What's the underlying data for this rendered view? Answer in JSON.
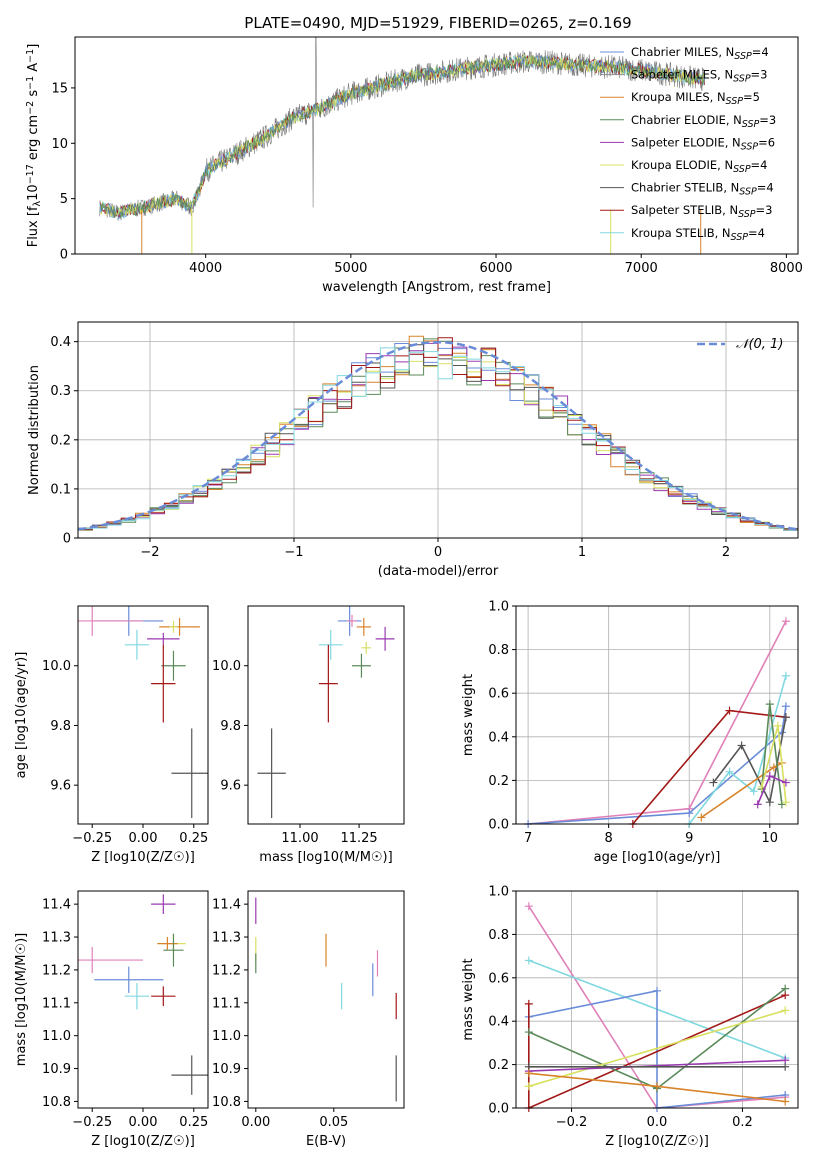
{
  "title": "PLATE=0490, MJD=51929, FIBERID=0265, z=0.169",
  "colors": {
    "Chabrier MILES": "#6a8cd8",
    "Salpeter MILES": "#8c8c8c",
    "Kroupa MILES": "#d8832a",
    "Chabrier ELODIE": "#5a8a5a",
    "Salpeter ELODIE": "#9a3ab0",
    "Kroupa ELODIE": "#d8e060",
    "Chabrier STELIB": "#555555",
    "Salpeter STELIB": "#a31818",
    "Kroupa STELIB": "#80d8e0",
    "pink": "#e080b8"
  },
  "chart_data": [
    {
      "id": "spectrum",
      "type": "line",
      "xlabel": "wavelength [Angstrom, rest frame]",
      "ylabel": "Flux [f_λ 10^-17 erg cm^-2 s^-1 A^-1]",
      "xlim": [
        3100,
        8080
      ],
      "ylim": [
        0,
        19.6
      ],
      "xticks": [
        4000,
        5000,
        6000,
        7000,
        8000
      ],
      "yticks": [
        0,
        5,
        10,
        15
      ],
      "grid": false,
      "legend_position": "right",
      "legend": [
        {
          "label": "Chabrier MILES, N",
          "sub": "SSP",
          "n": "=4"
        },
        {
          "label": "Salpeter MILES, N",
          "sub": "SSP",
          "n": "=3"
        },
        {
          "label": "Kroupa MILES, N",
          "sub": "SSP",
          "n": "=5"
        },
        {
          "label": "Chabrier ELODIE, N",
          "sub": "SSP",
          "n": "=3"
        },
        {
          "label": "Salpeter ELODIE, N",
          "sub": "SSP",
          "n": "=6"
        },
        {
          "label": "Kroupa ELODIE, N",
          "sub": "SSP",
          "n": "=4"
        },
        {
          "label": "Chabrier STELIB, N",
          "sub": "SSP",
          "n": "=4"
        },
        {
          "label": "Salpeter STELIB, N",
          "sub": "SSP",
          "n": "=3"
        },
        {
          "label": "Kroupa STELIB, N",
          "sub": "SSP",
          "n": "=4"
        }
      ],
      "continuum_x": [
        3270,
        3400,
        3600,
        3800,
        3900,
        3950,
        4000,
        4200,
        4400,
        4600,
        4800,
        5000,
        5200,
        5400,
        5600,
        5800,
        6000,
        6200,
        6400,
        6600,
        6800,
        7000,
        7200,
        7400
      ],
      "continuum_y": [
        4.2,
        3.7,
        4.3,
        5.0,
        4.2,
        5.5,
        7.5,
        9.0,
        10.5,
        12.3,
        13.2,
        14.5,
        15.2,
        16.0,
        16.4,
        16.8,
        17.1,
        17.4,
        17.3,
        17.0,
        16.9,
        16.6,
        16.2,
        15.8
      ]
    },
    {
      "id": "residuals",
      "type": "histogram",
      "xlabel": "(data-model)/error",
      "ylabel": "Normed distribution",
      "xlim": [
        -2.5,
        2.5
      ],
      "ylim": [
        0,
        0.44
      ],
      "xticks": [
        -2,
        -1,
        0,
        1,
        2
      ],
      "yticks": [
        0.0,
        0.1,
        0.2,
        0.3,
        0.4
      ],
      "grid": true,
      "legend": [
        {
          "label": "𝒩(0, 1)"
        }
      ]
    },
    {
      "id": "age_vs_Z",
      "type": "scatter",
      "xlabel": "Z [log10(Z/Z☉)]",
      "ylabel": "age  [log10(age/yr)]",
      "xlim": [
        -0.32,
        0.32
      ],
      "ylim": [
        9.47,
        10.2
      ],
      "xticks": [
        -0.25,
        0.0,
        0.25
      ],
      "xticklabels": [
        "−0.25",
        "0.00",
        "0.25"
      ],
      "yticks": [
        9.6,
        9.8,
        10.0
      ],
      "yticklabels": [
        "9.6",
        "9.8",
        "10.0"
      ],
      "points": [
        {
          "x": -0.07,
          "y": 10.15,
          "ex": 0.17,
          "ey": 0.05,
          "c": "Chabrier MILES"
        },
        {
          "x": -0.25,
          "y": 10.15,
          "ex": 0.25,
          "ey": 0.05,
          "c": "pink"
        },
        {
          "x": 0.18,
          "y": 10.13,
          "ex": 0.1,
          "ey": 0.03,
          "c": "Kroupa MILES"
        },
        {
          "x": 0.1,
          "y": 10.09,
          "ex": 0.08,
          "ey": 0.02,
          "c": "Salpeter ELODIE"
        },
        {
          "x": 0.15,
          "y": 10.13,
          "ex": 0.02,
          "ey": 0.02,
          "c": "Kroupa ELODIE"
        },
        {
          "x": -0.03,
          "y": 10.07,
          "ex": 0.06,
          "ey": 0.05,
          "c": "Kroupa STELIB"
        },
        {
          "x": 0.15,
          "y": 10.0,
          "ex": 0.06,
          "ey": 0.05,
          "c": "Chabrier ELODIE"
        },
        {
          "x": 0.1,
          "y": 9.94,
          "ex": 0.06,
          "ey": 0.13,
          "c": "Salpeter STELIB"
        },
        {
          "x": 0.24,
          "y": 9.64,
          "ex": 0.1,
          "ey": 0.15,
          "c": "Chabrier STELIB"
        }
      ]
    },
    {
      "id": "age_vs_mass",
      "type": "scatter",
      "xlabel": "mass [log10(M/M☉)]",
      "xlim": [
        10.78,
        11.44
      ],
      "ylim": [
        9.47,
        10.2
      ],
      "xticks": [
        11.0,
        11.25
      ],
      "xticklabels": [
        "11.00",
        "11.25"
      ],
      "yticks": [
        9.6,
        9.8,
        10.0
      ],
      "yticklabels": [
        "9.6",
        "9.8",
        "10.0"
      ],
      "points": [
        {
          "x": 11.21,
          "y": 10.15,
          "ex": 0.05,
          "ey": 0.05,
          "c": "Chabrier MILES"
        },
        {
          "x": 11.27,
          "y": 10.13,
          "ex": 0.03,
          "ey": 0.03,
          "c": "Kroupa MILES"
        },
        {
          "x": 11.22,
          "y": 10.15,
          "ex": 0.02,
          "ey": 0.02,
          "c": "pink"
        },
        {
          "x": 11.36,
          "y": 10.09,
          "ex": 0.04,
          "ey": 0.04,
          "c": "Salpeter ELODIE"
        },
        {
          "x": 11.28,
          "y": 10.06,
          "ex": 0.02,
          "ey": 0.02,
          "c": "Kroupa ELODIE"
        },
        {
          "x": 11.13,
          "y": 10.07,
          "ex": 0.05,
          "ey": 0.05,
          "c": "Kroupa STELIB"
        },
        {
          "x": 11.26,
          "y": 10.0,
          "ex": 0.04,
          "ey": 0.04,
          "c": "Chabrier ELODIE"
        },
        {
          "x": 11.12,
          "y": 9.94,
          "ex": 0.04,
          "ey": 0.13,
          "c": "Salpeter STELIB"
        },
        {
          "x": 10.88,
          "y": 9.64,
          "ex": 0.06,
          "ey": 0.15,
          "c": "Chabrier STELIB"
        }
      ]
    },
    {
      "id": "weight_vs_age",
      "type": "line",
      "xlabel": "age  [log10(age/yr)]",
      "ylabel": "mass weight",
      "xlim": [
        6.85,
        10.35
      ],
      "ylim": [
        0,
        1.0
      ],
      "xticks": [
        7,
        8,
        9,
        10
      ],
      "xticklabels": [
        "7",
        "8",
        "9",
        "10"
      ],
      "yticks": [
        0.0,
        0.2,
        0.4,
        0.6,
        0.8,
        1.0
      ],
      "yticklabels": [
        "0.0",
        "0.2",
        "0.4",
        "0.6",
        "0.8",
        "1.0"
      ],
      "grid": true,
      "series": [
        {
          "c": "pink",
          "x": [
            7.0,
            9.0,
            10.2
          ],
          "y": [
            0.0,
            0.07,
            0.93
          ]
        },
        {
          "c": "Chabrier MILES",
          "x": [
            7.0,
            9.0,
            10.15,
            10.2
          ],
          "y": [
            0.0,
            0.05,
            0.42,
            0.54
          ]
        },
        {
          "c": "Salpeter STELIB",
          "x": [
            8.3,
            9.5,
            10.2
          ],
          "y": [
            0.0,
            0.52,
            0.49
          ]
        },
        {
          "c": "Kroupa STELIB",
          "x": [
            9.0,
            9.5,
            9.8,
            10.2
          ],
          "y": [
            0.0,
            0.24,
            0.15,
            0.68
          ]
        },
        {
          "c": "Chabrier STELIB",
          "x": [
            9.3,
            9.65,
            10.0,
            10.2
          ],
          "y": [
            0.19,
            0.36,
            0.1,
            0.49
          ]
        },
        {
          "c": "Kroupa MILES",
          "x": [
            9.15,
            10.05,
            10.15
          ],
          "y": [
            0.03,
            0.26,
            0.28
          ]
        },
        {
          "c": "Chabrier ELODIE",
          "x": [
            9.9,
            10.0,
            10.15
          ],
          "y": [
            0.16,
            0.55,
            0.09
          ]
        },
        {
          "c": "Kroupa ELODIE",
          "x": [
            9.9,
            10.1,
            10.2
          ],
          "y": [
            0.17,
            0.45,
            0.1
          ]
        },
        {
          "c": "Salpeter ELODIE",
          "x": [
            9.85,
            10.0,
            10.2
          ],
          "y": [
            0.09,
            0.22,
            0.19
          ]
        }
      ]
    },
    {
      "id": "mass_vs_Z",
      "type": "scatter",
      "xlabel": "Z [log10(Z/Z☉)]",
      "ylabel": "mass [log10(M/M☉)]",
      "xlim": [
        -0.32,
        0.32
      ],
      "ylim": [
        10.78,
        11.44
      ],
      "xticks": [
        -0.25,
        0.0,
        0.25
      ],
      "xticklabels": [
        "−0.25",
        "0.00",
        "0.25"
      ],
      "yticks": [
        10.8,
        10.9,
        11.0,
        11.1,
        11.2,
        11.3,
        11.4
      ],
      "yticklabels": [
        "10.8",
        "10.9",
        "11.0",
        "11.1",
        "11.2",
        "11.3",
        "11.4"
      ],
      "points": [
        {
          "x": 0.1,
          "y": 11.4,
          "ex": 0.06,
          "ey": 0.03,
          "c": "Salpeter ELODIE"
        },
        {
          "x": 0.15,
          "y": 11.28,
          "ex": 0.06,
          "ey": 0.03,
          "c": "Kroupa ELODIE"
        },
        {
          "x": 0.12,
          "y": 11.28,
          "ex": 0.05,
          "ey": 0.02,
          "c": "Kroupa MILES"
        },
        {
          "x": 0.15,
          "y": 11.26,
          "ex": 0.05,
          "ey": 0.05,
          "c": "Chabrier ELODIE"
        },
        {
          "x": -0.25,
          "y": 11.23,
          "ex": 0.25,
          "ey": 0.04,
          "c": "pink"
        },
        {
          "x": -0.07,
          "y": 11.17,
          "ex": 0.17,
          "ey": 0.04,
          "c": "Chabrier MILES"
        },
        {
          "x": -0.03,
          "y": 11.12,
          "ex": 0.06,
          "ey": 0.04,
          "c": "Kroupa STELIB"
        },
        {
          "x": 0.1,
          "y": 11.12,
          "ex": 0.06,
          "ey": 0.03,
          "c": "Salpeter STELIB"
        },
        {
          "x": 0.24,
          "y": 10.88,
          "ex": 0.1,
          "ey": 0.06,
          "c": "Chabrier STELIB"
        }
      ]
    },
    {
      "id": "mass_vs_ebv",
      "type": "errorbar",
      "xlabel": "E(B-V)",
      "xlim": [
        -0.005,
        0.095
      ],
      "ylim": [
        10.78,
        11.44
      ],
      "xticks": [
        0.0,
        0.05
      ],
      "xticklabels": [
        "0.00",
        "0.05"
      ],
      "yticks": [
        10.8,
        10.9,
        11.0,
        11.1,
        11.2,
        11.3,
        11.4
      ],
      "yticklabels": [
        "10.8",
        "10.9",
        "11.0",
        "11.1",
        "11.2",
        "11.3",
        "11.4"
      ],
      "points": [
        {
          "x": 0.0,
          "y": 11.38,
          "ey": 0.04,
          "c": "Salpeter ELODIE"
        },
        {
          "x": 0.0,
          "y": 11.26,
          "ey": 0.04,
          "c": "Kroupa ELODIE"
        },
        {
          "x": 0.0,
          "y": 11.22,
          "ey": 0.03,
          "c": "Chabrier ELODIE"
        },
        {
          "x": 0.045,
          "y": 11.26,
          "ey": 0.05,
          "c": "Kroupa MILES"
        },
        {
          "x": 0.055,
          "y": 11.12,
          "ey": 0.04,
          "c": "Kroupa STELIB"
        },
        {
          "x": 0.075,
          "y": 11.17,
          "ey": 0.05,
          "c": "Chabrier MILES"
        },
        {
          "x": 0.078,
          "y": 11.22,
          "ey": 0.04,
          "c": "pink"
        },
        {
          "x": 0.09,
          "y": 11.09,
          "ey": 0.04,
          "c": "Salpeter STELIB"
        },
        {
          "x": 0.09,
          "y": 10.87,
          "ey": 0.07,
          "c": "Chabrier STELIB"
        }
      ]
    },
    {
      "id": "weight_vs_Z",
      "type": "line",
      "xlabel": "Z [log10(Z/Z☉)]",
      "ylabel": "mass weight",
      "xlim": [
        -0.33,
        0.33
      ],
      "ylim": [
        0,
        1.0
      ],
      "xticks": [
        -0.2,
        0.0,
        0.2
      ],
      "xticklabels": [
        "−0.2",
        "0.0",
        "0.2"
      ],
      "yticks": [
        0.0,
        0.2,
        0.4,
        0.6,
        0.8,
        1.0
      ],
      "yticklabels": [
        "0.0",
        "0.2",
        "0.4",
        "0.6",
        "0.8",
        "1.0"
      ],
      "grid": true,
      "series": [
        {
          "c": "pink",
          "x": [
            -0.3,
            0.0,
            0.3
          ],
          "y": [
            0.93,
            0.0,
            0.05
          ]
        },
        {
          "c": "Kroupa STELIB",
          "x": [
            -0.3,
            0.3
          ],
          "y": [
            0.68,
            0.23
          ]
        },
        {
          "c": "Chabrier MILES",
          "x": [
            -0.3,
            0.0,
            0.0,
            0.3
          ],
          "y": [
            0.42,
            0.54,
            0.0,
            0.06
          ]
        },
        {
          "c": "Salpeter STELIB",
          "x": [
            -0.3,
            -0.3,
            0.3
          ],
          "y": [
            0.48,
            0.0,
            0.52
          ]
        },
        {
          "c": "Chabrier ELODIE",
          "x": [
            -0.3,
            0.0,
            0.3
          ],
          "y": [
            0.35,
            0.09,
            0.55
          ]
        },
        {
          "c": "Kroupa ELODIE",
          "x": [
            -0.3,
            0.3
          ],
          "y": [
            0.1,
            0.45
          ]
        },
        {
          "c": "Salpeter ELODIE",
          "x": [
            -0.3,
            0.3
          ],
          "y": [
            0.17,
            0.22
          ]
        },
        {
          "c": "Chabrier STELIB",
          "x": [
            -0.3,
            0.3
          ],
          "y": [
            0.19,
            0.19
          ]
        },
        {
          "c": "Kroupa MILES",
          "x": [
            -0.3,
            0.0,
            0.3
          ],
          "y": [
            0.16,
            0.1,
            0.03
          ]
        }
      ]
    }
  ]
}
